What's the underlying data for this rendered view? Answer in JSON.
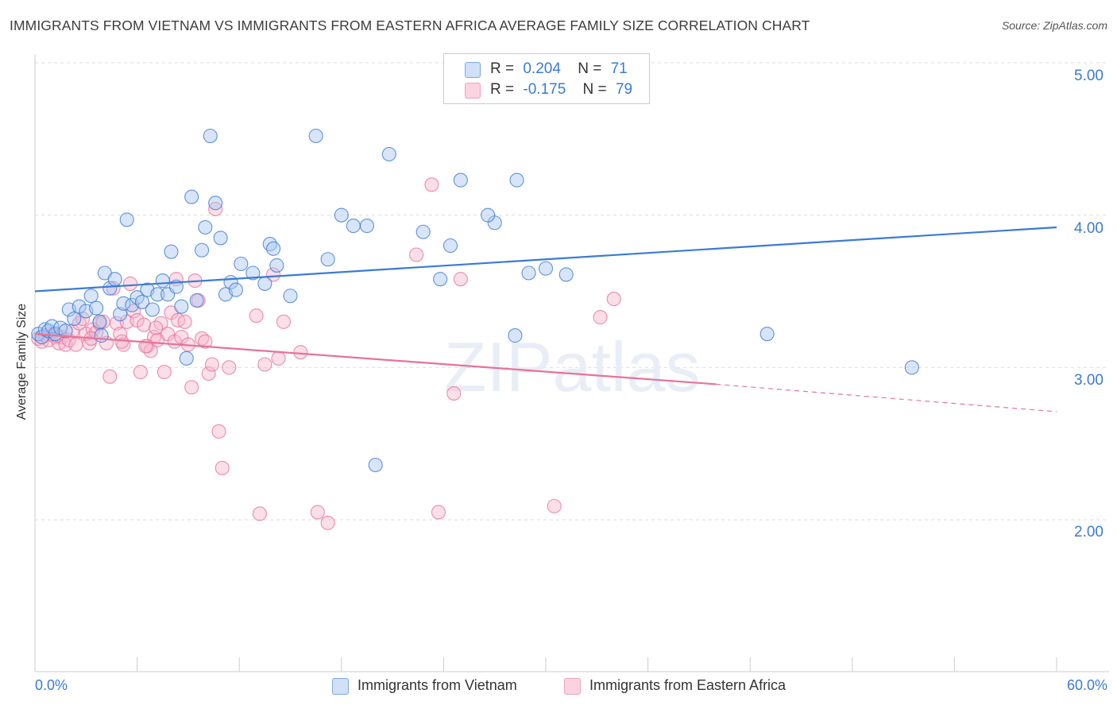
{
  "title": "IMMIGRANTS FROM VIETNAM VS IMMIGRANTS FROM EASTERN AFRICA AVERAGE FAMILY SIZE CORRELATION CHART",
  "source": "Source: ZipAtlas.com",
  "watermark": "ZIPatlas",
  "colors": {
    "series1": "#3a7bd5",
    "series2": "#e8729a",
    "fill1": "#a9c6ef",
    "fill2": "#f5b6cb",
    "axis_text": "#3a7bd5",
    "grid": "#dddddd"
  },
  "legend": {
    "r1_label": "R =",
    "r1_value": "0.204",
    "n1_label": "N =",
    "n1_value": "71",
    "r2_label": "R =",
    "r2_value": "-0.175",
    "n2_label": "N =",
    "n2_value": "79"
  },
  "bottom_legend": {
    "series1": "Immigrants from Vietnam",
    "series2": "Immigrants from Eastern Africa"
  },
  "chart_data": {
    "type": "scatter",
    "title": "IMMIGRANTS FROM VIETNAM VS IMMIGRANTS FROM EASTERN AFRICA AVERAGE FAMILY SIZE CORRELATION CHART",
    "xlabel": "",
    "ylabel": "Average Family Size",
    "xlim": [
      0,
      60
    ],
    "ylim": [
      1.0,
      5.1
    ],
    "x_tick_labels": [
      "0.0%",
      "60.0%"
    ],
    "y_ticks": [
      2.0,
      3.0,
      4.0,
      5.0
    ],
    "y_tick_labels": [
      "2.00",
      "3.00",
      "4.00",
      "5.00"
    ],
    "series": [
      {
        "name": "Immigrants from Vietnam",
        "r": 0.204,
        "n": 71,
        "trend": {
          "x0": 0,
          "y0": 3.5,
          "x1": 60,
          "y1": 3.92
        },
        "points": [
          [
            0.2,
            3.22
          ],
          [
            0.4,
            3.2
          ],
          [
            0.6,
            3.25
          ],
          [
            0.8,
            3.24
          ],
          [
            1.0,
            3.27
          ],
          [
            1.2,
            3.22
          ],
          [
            1.5,
            3.26
          ],
          [
            1.8,
            3.24
          ],
          [
            2.0,
            3.38
          ],
          [
            2.3,
            3.32
          ],
          [
            2.6,
            3.4
          ],
          [
            3.0,
            3.37
          ],
          [
            3.3,
            3.47
          ],
          [
            3.6,
            3.39
          ],
          [
            3.8,
            3.3
          ],
          [
            4.1,
            3.62
          ],
          [
            4.4,
            3.52
          ],
          [
            4.7,
            3.58
          ],
          [
            5.0,
            3.35
          ],
          [
            5.2,
            3.42
          ],
          [
            5.4,
            3.97
          ],
          [
            5.7,
            3.41
          ],
          [
            6.0,
            3.46
          ],
          [
            6.3,
            3.43
          ],
          [
            6.6,
            3.51
          ],
          [
            6.9,
            3.38
          ],
          [
            7.2,
            3.48
          ],
          [
            7.5,
            3.57
          ],
          [
            7.8,
            3.48
          ],
          [
            8.0,
            3.76
          ],
          [
            8.3,
            3.53
          ],
          [
            8.6,
            3.4
          ],
          [
            8.9,
            3.06
          ],
          [
            9.2,
            4.12
          ],
          [
            9.5,
            3.44
          ],
          [
            9.8,
            3.77
          ],
          [
            10.0,
            3.92
          ],
          [
            10.3,
            4.52
          ],
          [
            10.6,
            4.08
          ],
          [
            10.9,
            3.85
          ],
          [
            11.2,
            3.48
          ],
          [
            11.5,
            3.56
          ],
          [
            11.8,
            3.51
          ],
          [
            12.1,
            3.68
          ],
          [
            12.8,
            3.62
          ],
          [
            13.5,
            3.55
          ],
          [
            13.8,
            3.81
          ],
          [
            14.0,
            3.78
          ],
          [
            14.2,
            3.67
          ],
          [
            15.0,
            3.47
          ],
          [
            16.5,
            4.52
          ],
          [
            17.2,
            3.71
          ],
          [
            18.0,
            4.0
          ],
          [
            18.7,
            3.93
          ],
          [
            19.5,
            3.93
          ],
          [
            20.0,
            2.36
          ],
          [
            20.8,
            4.4
          ],
          [
            22.8,
            3.89
          ],
          [
            23.8,
            3.58
          ],
          [
            24.4,
            3.8
          ],
          [
            25.0,
            4.23
          ],
          [
            27.0,
            3.95
          ],
          [
            26.6,
            4.0
          ],
          [
            28.3,
            4.23
          ],
          [
            28.2,
            3.21
          ],
          [
            29.0,
            3.62
          ],
          [
            30.0,
            3.65
          ],
          [
            31.2,
            3.61
          ],
          [
            43.0,
            3.22
          ],
          [
            51.5,
            3.0
          ],
          [
            3.9,
            3.21
          ]
        ]
      },
      {
        "name": "Immigrants from Eastern Africa",
        "r": -0.175,
        "n": 79,
        "trend": {
          "x0": 0,
          "y0": 3.22,
          "x1": 40,
          "y1": 2.89,
          "dashed_to_x": 60,
          "dashed_to_y": 2.71
        },
        "points": [
          [
            0.2,
            3.19
          ],
          [
            0.4,
            3.17
          ],
          [
            0.6,
            3.21
          ],
          [
            0.8,
            3.18
          ],
          [
            1.0,
            3.22
          ],
          [
            1.2,
            3.2
          ],
          [
            1.4,
            3.16
          ],
          [
            1.6,
            3.2
          ],
          [
            1.8,
            3.15
          ],
          [
            2.0,
            3.18
          ],
          [
            2.2,
            3.24
          ],
          [
            2.4,
            3.15
          ],
          [
            2.6,
            3.29
          ],
          [
            2.8,
            3.32
          ],
          [
            3.0,
            3.22
          ],
          [
            3.2,
            3.16
          ],
          [
            3.4,
            3.25
          ],
          [
            3.6,
            3.23
          ],
          [
            3.8,
            3.29
          ],
          [
            4.0,
            3.3
          ],
          [
            4.2,
            3.16
          ],
          [
            4.4,
            2.94
          ],
          [
            4.6,
            3.52
          ],
          [
            4.8,
            3.29
          ],
          [
            5.0,
            3.22
          ],
          [
            5.2,
            3.15
          ],
          [
            5.4,
            3.3
          ],
          [
            5.6,
            3.55
          ],
          [
            5.8,
            3.37
          ],
          [
            6.0,
            3.31
          ],
          [
            6.2,
            2.97
          ],
          [
            6.4,
            3.28
          ],
          [
            6.6,
            3.14
          ],
          [
            6.8,
            3.11
          ],
          [
            7.0,
            3.2
          ],
          [
            7.2,
            3.18
          ],
          [
            7.4,
            3.29
          ],
          [
            7.6,
            2.97
          ],
          [
            7.8,
            3.22
          ],
          [
            8.0,
            3.36
          ],
          [
            8.2,
            3.17
          ],
          [
            8.4,
            3.31
          ],
          [
            8.6,
            3.2
          ],
          [
            8.8,
            3.3
          ],
          [
            9.0,
            3.15
          ],
          [
            9.2,
            2.87
          ],
          [
            9.4,
            3.57
          ],
          [
            9.6,
            3.44
          ],
          [
            9.8,
            3.19
          ],
          [
            10.0,
            3.17
          ],
          [
            10.2,
            2.96
          ],
          [
            10.4,
            3.02
          ],
          [
            10.6,
            4.04
          ],
          [
            10.8,
            2.58
          ],
          [
            11.0,
            2.34
          ],
          [
            11.4,
            3.0
          ],
          [
            13.0,
            3.34
          ],
          [
            13.2,
            2.04
          ],
          [
            13.5,
            3.02
          ],
          [
            14.0,
            3.61
          ],
          [
            14.3,
            3.06
          ],
          [
            14.6,
            3.3
          ],
          [
            15.6,
            3.1
          ],
          [
            16.6,
            2.05
          ],
          [
            17.2,
            1.98
          ],
          [
            22.4,
            3.74
          ],
          [
            23.3,
            4.2
          ],
          [
            23.7,
            2.05
          ],
          [
            24.6,
            2.83
          ],
          [
            25.0,
            3.58
          ],
          [
            30.5,
            2.09
          ],
          [
            33.2,
            3.33
          ],
          [
            34.0,
            3.45
          ],
          [
            8.3,
            3.58
          ],
          [
            7.1,
            3.26
          ],
          [
            5.1,
            3.17
          ],
          [
            3.3,
            3.19
          ],
          [
            1.3,
            3.21
          ],
          [
            6.5,
            3.14
          ]
        ]
      }
    ]
  }
}
